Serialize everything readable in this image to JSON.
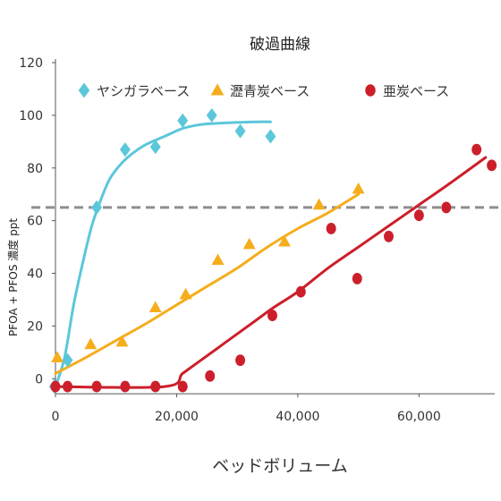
{
  "chart_data": {
    "type": "scatter",
    "title": "破過曲線",
    "xlabel": "ベッドボリューム",
    "ylabel": "PFOA + PFOS 濃度 ppt",
    "xlim": [
      0,
      72500
    ],
    "ylim": [
      -5,
      120
    ],
    "xticks": [
      0,
      20000,
      40000,
      60000
    ],
    "xtick_labels": [
      "0",
      "20,000",
      "40,000",
      "60,000"
    ],
    "yticks": [
      0,
      20,
      40,
      60,
      80,
      100,
      120
    ],
    "ytick_labels": [
      "0",
      "20",
      "40",
      "60",
      "80",
      "100",
      "120"
    ],
    "y_baseline_tick": -3,
    "threshold": 65,
    "legend_position": "top",
    "grid": false,
    "series": [
      {
        "name": "ヤシガラベース",
        "color": "#5bc7da",
        "marker": "diamond",
        "points": [
          [
            -200,
            -3
          ],
          [
            2000,
            7
          ],
          [
            6800,
            65
          ],
          [
            11500,
            87
          ],
          [
            16500,
            88
          ],
          [
            21000,
            98
          ],
          [
            25800,
            100
          ],
          [
            30500,
            94
          ],
          [
            35500,
            92
          ]
        ],
        "curve": [
          [
            0,
            -3
          ],
          [
            1500,
            8
          ],
          [
            3000,
            28
          ],
          [
            4500,
            44
          ],
          [
            6000,
            58
          ],
          [
            7500,
            68
          ],
          [
            9000,
            76
          ],
          [
            11000,
            82
          ],
          [
            13000,
            86
          ],
          [
            15000,
            89
          ],
          [
            18000,
            92
          ],
          [
            21000,
            95
          ],
          [
            24000,
            96.5
          ],
          [
            27000,
            97
          ],
          [
            30000,
            97.3
          ],
          [
            33000,
            97.5
          ],
          [
            35500,
            97.5
          ]
        ]
      },
      {
        "name": "瀝青炭ベース",
        "color": "#f5ad1c",
        "marker": "triangle",
        "points": [
          [
            300,
            8
          ],
          [
            5800,
            13
          ],
          [
            11000,
            14
          ],
          [
            16500,
            27
          ],
          [
            21500,
            32
          ],
          [
            26800,
            45
          ],
          [
            32000,
            51
          ],
          [
            37800,
            52
          ],
          [
            43500,
            66
          ],
          [
            50000,
            72
          ]
        ],
        "curve": [
          [
            0,
            2
          ],
          [
            5000,
            8
          ],
          [
            10000,
            14.5
          ],
          [
            15000,
            21
          ],
          [
            20000,
            28
          ],
          [
            25000,
            35
          ],
          [
            30000,
            42
          ],
          [
            35000,
            50
          ],
          [
            40000,
            57
          ],
          [
            45000,
            63
          ],
          [
            50000,
            70
          ]
        ]
      },
      {
        "name": "亜炭ベース",
        "color": "#cc1f2b",
        "marker": "circle",
        "points": [
          [
            0,
            -3
          ],
          [
            2000,
            -3
          ],
          [
            6800,
            -3
          ],
          [
            11500,
            -3
          ],
          [
            16500,
            -3
          ],
          [
            21000,
            -3
          ],
          [
            25500,
            1
          ],
          [
            30500,
            7
          ],
          [
            35800,
            24
          ],
          [
            40500,
            33
          ],
          [
            45500,
            57
          ],
          [
            49800,
            38
          ],
          [
            55000,
            54
          ],
          [
            60000,
            62
          ],
          [
            64500,
            65
          ],
          [
            69500,
            87
          ],
          [
            72000,
            81
          ]
        ],
        "curve": [
          [
            0,
            -3
          ],
          [
            18000,
            -3
          ],
          [
            21000,
            2
          ],
          [
            24000,
            7
          ],
          [
            27000,
            12
          ],
          [
            30000,
            17
          ],
          [
            33000,
            22
          ],
          [
            36000,
            27
          ],
          [
            40000,
            33
          ],
          [
            45000,
            42
          ],
          [
            50000,
            50
          ],
          [
            55000,
            58
          ],
          [
            60000,
            66
          ],
          [
            65000,
            74
          ],
          [
            71000,
            84
          ]
        ]
      }
    ]
  }
}
